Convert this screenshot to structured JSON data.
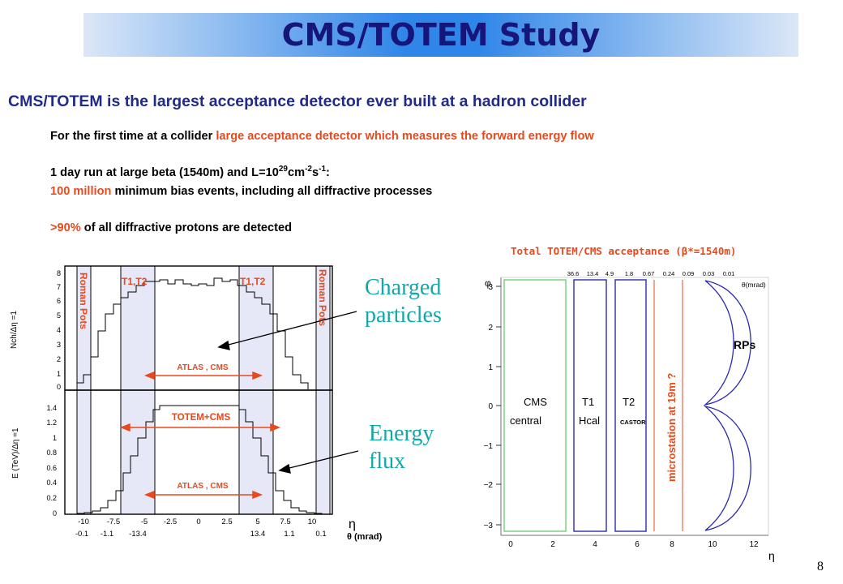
{
  "title": "CMS/TOTEM Study",
  "headline": "CMS/TOTEM is the largest acceptance detector ever built at a hadron collider",
  "para1": {
    "lead": "For the first time at a collider ",
    "highlight": "large acceptance detector which measures the forward energy flow"
  },
  "para2": {
    "line1_a": "1 day run at large beta (1540m) and L=10",
    "line1_sup1": "29",
    "line1_b": "cm",
    "line1_sup2": "-2",
    "line1_c": "s",
    "line1_sup3": "-1",
    "line1_d": ":",
    "line2_highlight": "100 million",
    "line2_rest": " minimum bias events, including all diffractive processes"
  },
  "para3": {
    "highlight": ">90%",
    "rest": " of all diffractive protons are detected"
  },
  "left_plot": {
    "top_ylabel": "Nch/Δη =1",
    "bottom_ylabel": "E (TeV)/Δη =1",
    "top_yticks": [
      "0",
      "1",
      "2",
      "3",
      "4",
      "5",
      "6",
      "7",
      "8"
    ],
    "bottom_yticks": [
      "0",
      "0.2",
      "0.4",
      "0.6",
      "0.8",
      "1",
      "1.2",
      "1.4"
    ],
    "xticks": [
      "-10",
      "-7.5",
      "-5",
      "-2.5",
      "0",
      "2.5",
      "5",
      "7.5",
      "10"
    ],
    "theta_ticks": [
      "-0.1",
      "-1.1",
      "-13.4",
      "13.4",
      "1.1",
      "0.1"
    ],
    "eta_label": "η",
    "theta_label": "θ (mrad)",
    "roman_pots": "Roman Pots",
    "t1t2": "T1,T2",
    "atlas_cms": "ATLAS , CMS",
    "totem_cms": "TOTEM+CMS",
    "charged_label": "Charged\nparticles",
    "energy_label": "Energy\nflux"
  },
  "right_plot": {
    "title": "Total TOTEM/CMS acceptance (β*=1540m)",
    "yticks": [
      "3",
      "2",
      "1",
      "0",
      "−1",
      "−2",
      "−3"
    ],
    "xticks": [
      "0",
      "2",
      "4",
      "6",
      "8",
      "10",
      "12"
    ],
    "top_ticks": [
      "36.6",
      "13.4",
      "4.9",
      "1.8",
      "0.67",
      "0.24",
      "0.09",
      "0.03",
      "0.01"
    ],
    "theta_label": "θ(mrad)",
    "eta_axis": "η",
    "phi_axis": "φ",
    "cms_central": "CMS\ncentral",
    "t1_hcal": "T1\nHcal",
    "t2_castor": "T2\nCASTOR",
    "microstation": "microstation at 19m ?",
    "rps": "RPs"
  },
  "colors": {
    "title_text": "#15157a",
    "headline": "#1f2a8a",
    "highlight": "#e8491d",
    "teal_label": "#13a8a8",
    "band_fill": "#e6e8f7",
    "detector_blue": "#2a2ab0",
    "cms_green": "#5cc45c"
  },
  "page_number": "8"
}
